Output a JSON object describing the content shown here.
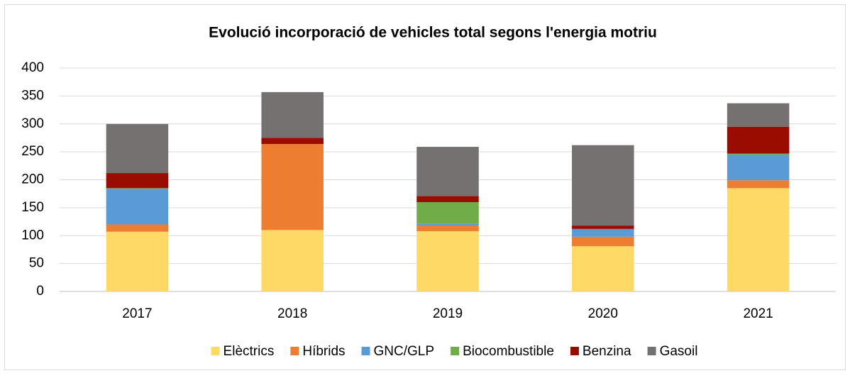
{
  "chart_data": {
    "type": "stacked_bar",
    "title": "Evolució incorporació de vehicles total segons l'energia motriu",
    "categories": [
      "2017",
      "2018",
      "2019",
      "2020",
      "2021"
    ],
    "series": [
      {
        "name": "Elèctrics",
        "color": "#ffd966",
        "values": [
          107,
          110,
          108,
          81,
          185
        ]
      },
      {
        "name": "Híbrids",
        "color": "#ed7d31",
        "values": [
          13,
          154,
          10,
          17,
          14
        ]
      },
      {
        "name": "GNC/GLP",
        "color": "#5b9bd5",
        "values": [
          64,
          0,
          3,
          14,
          46
        ]
      },
      {
        "name": "Biocombustible",
        "color": "#70ad47",
        "values": [
          1,
          0,
          39,
          0,
          2
        ]
      },
      {
        "name": "Benzina",
        "color": "#9a0b00",
        "values": [
          27,
          11,
          11,
          6,
          48
        ]
      },
      {
        "name": "Gasoil",
        "color": "#767171",
        "values": [
          88,
          82,
          88,
          144,
          42
        ]
      }
    ],
    "ylim": [
      0,
      400
    ],
    "yticks": [
      0,
      50,
      100,
      150,
      200,
      250,
      300,
      350,
      400
    ],
    "grid": true,
    "legend": "bottom"
  }
}
